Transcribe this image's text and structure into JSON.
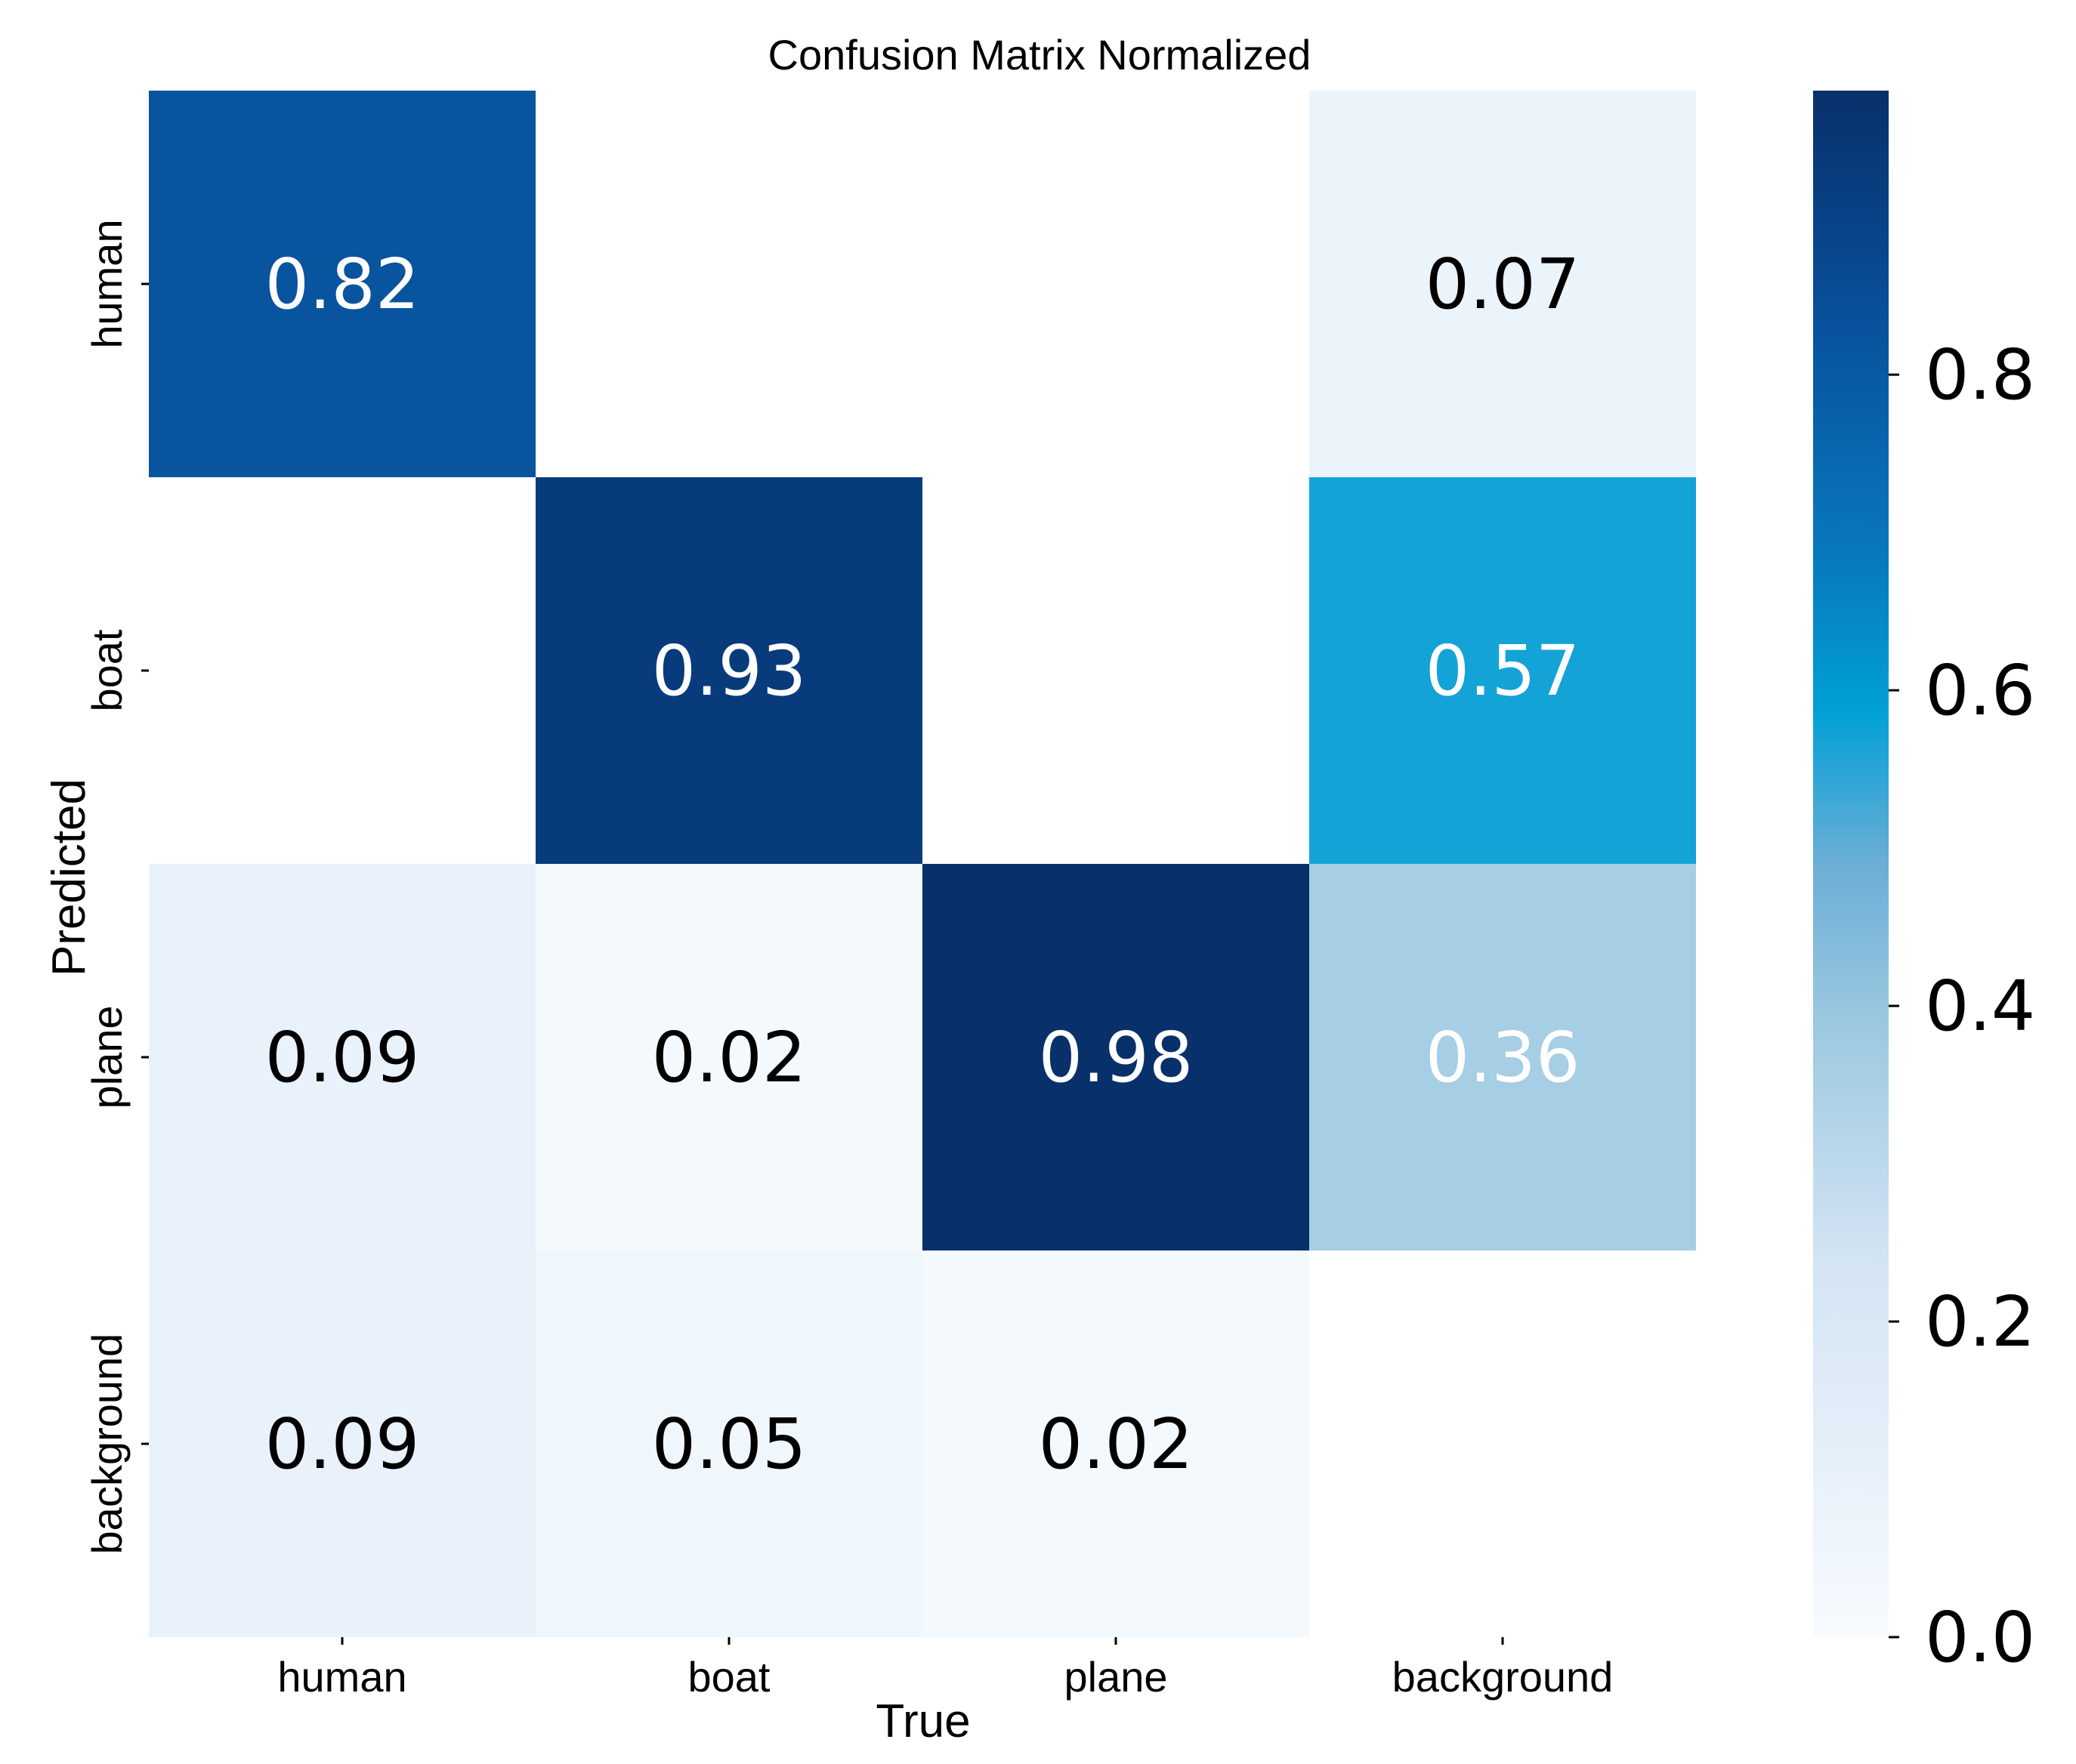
{
  "chart_data": {
    "type": "heatmap",
    "title": "Confusion Matrix Normalized",
    "xlabel": "True",
    "ylabel": "Predicted",
    "x_categories": [
      "human",
      "boat",
      "plane",
      "background"
    ],
    "y_categories": [
      "human",
      "boat",
      "plane",
      "background"
    ],
    "values": [
      [
        0.82,
        null,
        null,
        0.07
      ],
      [
        null,
        0.93,
        null,
        0.57
      ],
      [
        0.09,
        0.02,
        0.98,
        0.36
      ],
      [
        0.09,
        0.05,
        0.02,
        null
      ]
    ],
    "colormap": "Blues",
    "colorbar": {
      "min": 0.0,
      "max": 0.98,
      "ticks": [
        0.0,
        0.2,
        0.4,
        0.6,
        0.8
      ],
      "tick_labels": [
        "0.0",
        "0.2",
        "0.4",
        "0.6",
        "0.8"
      ]
    },
    "empty_cell_color": "#ffffff",
    "text_color_dark": "#000000",
    "text_color_light": "#ffffff"
  }
}
